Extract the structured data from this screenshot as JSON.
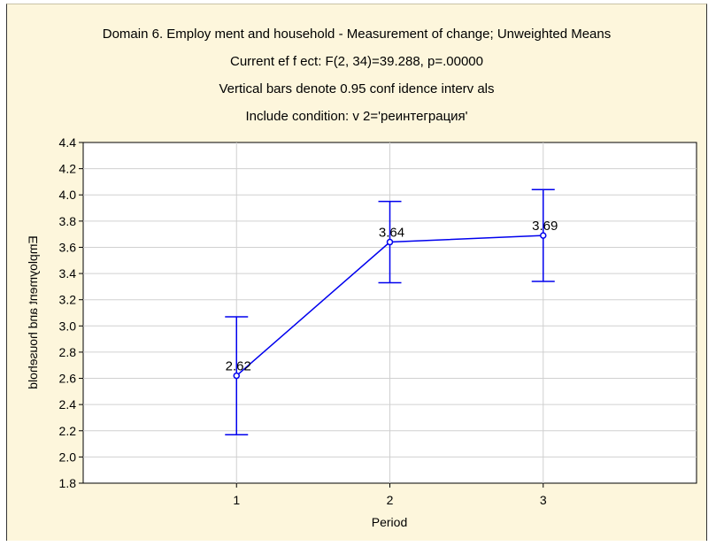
{
  "titles": [
    "Domain 6. Employ ment and household - Measurement of  change; Unweighted Means",
    "Current ef f ect: F(2, 34)=39.288, p=.00000",
    "Vertical bars denote 0.95 conf idence interv als",
    "Include condition: v 2='реинтеграция'"
  ],
  "chart_data": {
    "type": "line",
    "x": [
      "1",
      "2",
      "3"
    ],
    "series": [
      {
        "values": [
          2.62,
          3.64,
          3.69
        ],
        "ci_low": [
          2.17,
          3.33,
          3.34
        ],
        "ci_high": [
          3.07,
          3.95,
          4.04
        ],
        "data_labels": [
          "2.62",
          "3.64",
          "3.69"
        ]
      }
    ],
    "xlabel": "Period",
    "ylabel": "Employment and household",
    "ylim": [
      1.8,
      4.4
    ],
    "yticks": [
      "1.8",
      "2.0",
      "2.2",
      "2.4",
      "2.6",
      "2.8",
      "3.0",
      "3.2",
      "3.4",
      "3.6",
      "3.8",
      "4.0",
      "4.2",
      "4.4"
    ],
    "grid": true,
    "colors": {
      "line": "#0000ee",
      "grid": "#d0d0d0",
      "background": "#fdf6dc",
      "plot_bg": "#ffffff"
    }
  }
}
